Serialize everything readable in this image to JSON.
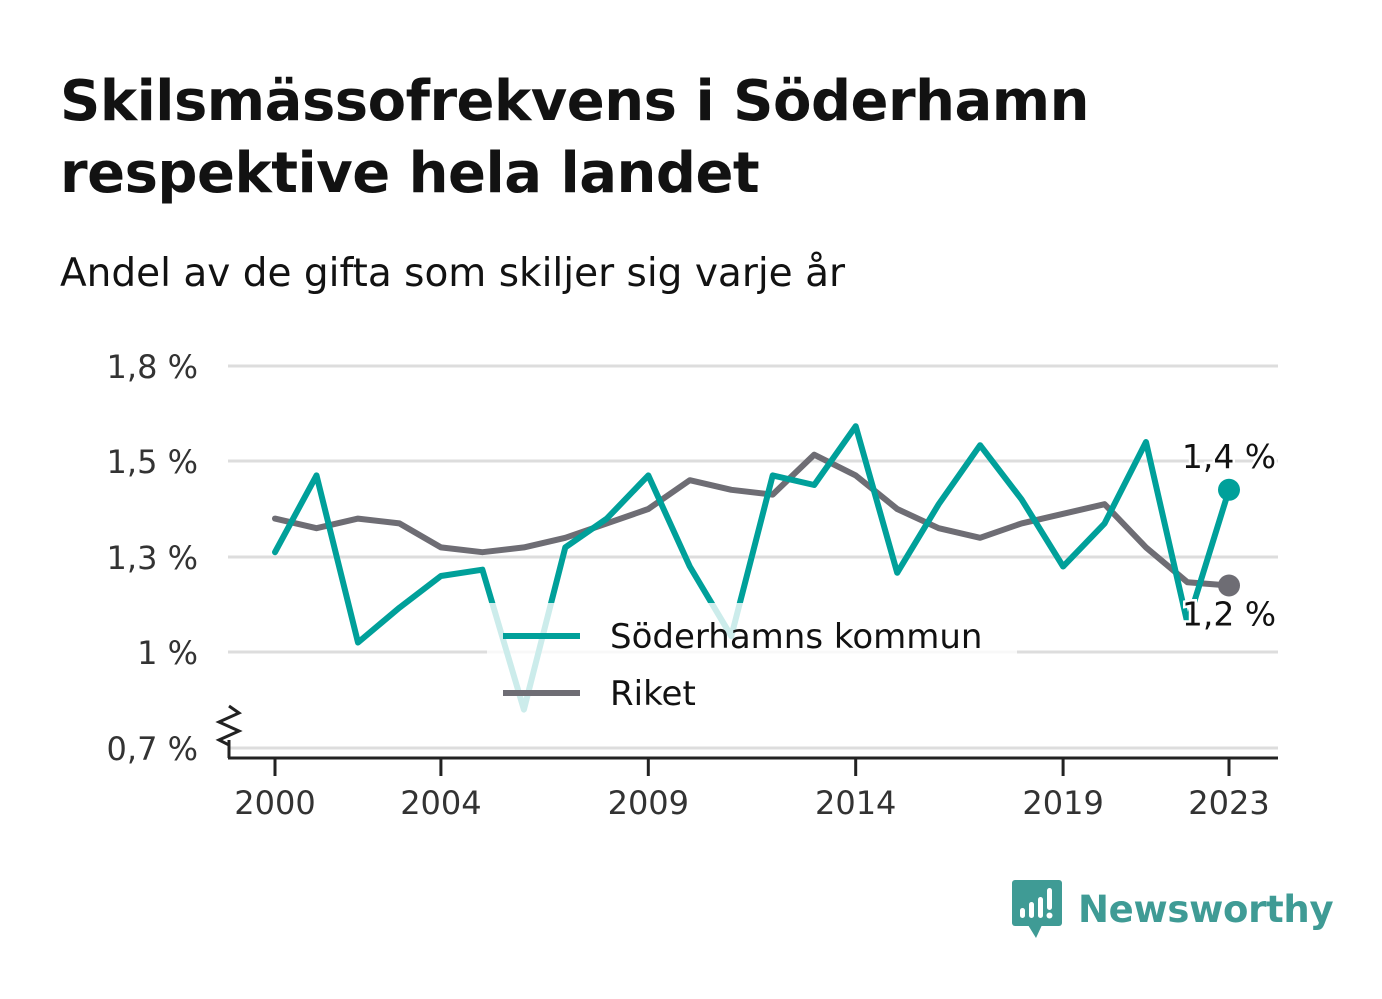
{
  "title": "Skilsmässofrekvens i Söderhamn respektive hela landet",
  "subtitle": "Andel av de gifta som skiljer sig varje år",
  "brand": {
    "name": "Newsworthy",
    "color": "#3f9b95"
  },
  "chart_data": {
    "type": "line",
    "title": "Skilsmässofrekvens i Söderhamn respektive hela landet",
    "subtitle": "Andel av de gifta som skiljer sig varje år",
    "xlabel": "",
    "ylabel": "",
    "x": [
      2000,
      2001,
      2002,
      2003,
      2004,
      2005,
      2006,
      2007,
      2008,
      2009,
      2010,
      2011,
      2012,
      2013,
      2014,
      2015,
      2016,
      2017,
      2018,
      2019,
      2020,
      2021,
      2022,
      2023
    ],
    "xticks": [
      2000,
      2004,
      2009,
      2014,
      2019,
      2023
    ],
    "yticks": [
      0.7,
      1.0,
      1.3,
      1.5,
      1.8
    ],
    "ytick_labels": [
      "0,7 %",
      "1 %",
      "1,3 %",
      "1,5 %",
      "1,8 %"
    ],
    "ylim": [
      0.7,
      1.8
    ],
    "grid": true,
    "axis_break": true,
    "legend_position": "bottom-center",
    "series": [
      {
        "name": "Söderhamns kommun",
        "color": "#00a09a",
        "values": [
          1.31,
          1.47,
          1.03,
          1.14,
          1.24,
          1.26,
          0.82,
          1.32,
          1.38,
          1.47,
          1.27,
          1.05,
          1.47,
          1.45,
          1.61,
          1.25,
          1.41,
          1.55,
          1.42,
          1.27,
          1.37,
          1.56,
          1.09,
          1.44
        ],
        "end_label": "1,4 %"
      },
      {
        "name": "Riket",
        "color": "#6e6d74",
        "values": [
          1.38,
          1.36,
          1.38,
          1.37,
          1.32,
          1.31,
          1.32,
          1.34,
          1.37,
          1.4,
          1.46,
          1.44,
          1.43,
          1.52,
          1.47,
          1.4,
          1.36,
          1.34,
          1.37,
          1.39,
          1.41,
          1.32,
          1.22,
          1.21
        ],
        "end_label": "1,2 %"
      }
    ]
  }
}
